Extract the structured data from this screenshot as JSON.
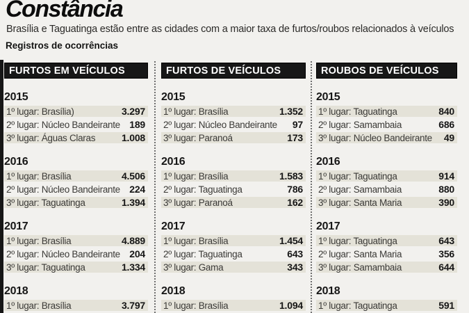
{
  "page": {
    "title": "Constância",
    "subtitle": "Brasília e Taguatinga estão entre as cidades com a maior taxa de furtos/roubos relacionados à veículos",
    "section_label": "Registros de ocorrências"
  },
  "colors": {
    "page_bg": "#f2f1ee",
    "header_bar": "#171717",
    "header_text": "#ffffff",
    "row_shade": "#e4e2d8",
    "text_dark": "#161616"
  },
  "chart_data": [
    {
      "type": "table",
      "title": "FURTOS EM VEÍCULOS",
      "sections": [
        {
          "year": "2015",
          "rows": [
            {
              "label": "1º lugar: Brasília)",
              "value": "3.297"
            },
            {
              "label": "2º lugar: Núcleo Bandeirante",
              "value": "189"
            },
            {
              "label": "3º lugar: Águas Claras",
              "value": "1.008"
            }
          ]
        },
        {
          "year": "2016",
          "rows": [
            {
              "label": "1º lugar: Brasília",
              "value": "4.506"
            },
            {
              "label": "2º lugar: Núcleo Bandeirante",
              "value": "224"
            },
            {
              "label": "3º lugar: Taguatinga",
              "value": "1.394"
            }
          ]
        },
        {
          "year": "2017",
          "rows": [
            {
              "label": "1º lugar: Brasília",
              "value": "4.889"
            },
            {
              "label": "2º lugar: Núcleo Bandeirante",
              "value": "204"
            },
            {
              "label": "3º lugar: Taguatinga",
              "value": "1.334"
            }
          ]
        },
        {
          "year": "2018",
          "rows": [
            {
              "label": "1º lugar: Brasília",
              "value": "3.797"
            }
          ]
        }
      ]
    },
    {
      "type": "table",
      "title": "FURTOS DE VEÍCULOS",
      "sections": [
        {
          "year": "2015",
          "rows": [
            {
              "label": "1º lugar: Brasília",
              "value": "1.352"
            },
            {
              "label": "2º lugar: Núcleo Bandeirante",
              "value": "97"
            },
            {
              "label": "3º lugar: Paranoá",
              "value": "173"
            }
          ]
        },
        {
          "year": "2016",
          "rows": [
            {
              "label": "1º lugar: Brasília",
              "value": "1.583"
            },
            {
              "label": "2º lugar: Taguatinga",
              "value": "786"
            },
            {
              "label": "3º lugar: Paranoá",
              "value": "162"
            }
          ]
        },
        {
          "year": "2017",
          "rows": [
            {
              "label": "1º lugar: Brasília",
              "value": "1.454"
            },
            {
              "label": "2º lugar: Taguatinga",
              "value": "643"
            },
            {
              "label": "3º lugar: Gama",
              "value": "343"
            }
          ]
        },
        {
          "year": "2018",
          "rows": [
            {
              "label": "1º lugar: Brasília",
              "value": "1.094"
            }
          ]
        }
      ]
    },
    {
      "type": "table",
      "title": "ROUBOS DE VEÍCULOS",
      "sections": [
        {
          "year": "2015",
          "rows": [
            {
              "label": "1º lugar: Taguatinga",
              "value": "840"
            },
            {
              "label": "2º lugar: Samambaia",
              "value": "686"
            },
            {
              "label": "3º lugar: Núcleo Bandeirante",
              "value": "49"
            }
          ]
        },
        {
          "year": "2016",
          "rows": [
            {
              "label": "1º lugar: Taguatinga",
              "value": "914"
            },
            {
              "label": "2º lugar: Samambaia",
              "value": "880"
            },
            {
              "label": "3º lugar: Santa Maria",
              "value": "390"
            }
          ]
        },
        {
          "year": "2017",
          "rows": [
            {
              "label": "1º lugar: Taguatinga",
              "value": "643"
            },
            {
              "label": "2º lugar: Santa Maria",
              "value": "356"
            },
            {
              "label": "3º lugar: Samambaia",
              "value": "644"
            }
          ]
        },
        {
          "year": "2018",
          "rows": [
            {
              "label": "1º lugar: Taguatinga",
              "value": "591"
            }
          ]
        }
      ]
    }
  ]
}
